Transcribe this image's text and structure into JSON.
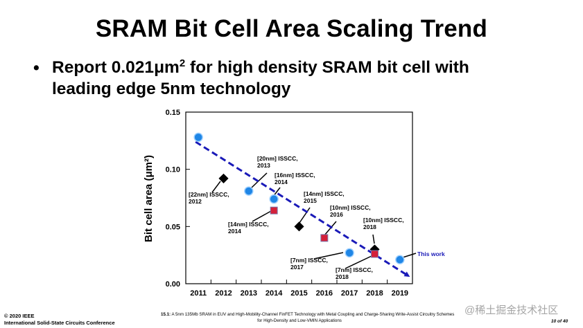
{
  "slide": {
    "title": "SRAM Bit Cell Area Scaling Trend",
    "bullet_symbol": "•",
    "bullet_line1_pre": "Report 0.021",
    "bullet_unit_mu": "μm",
    "bullet_unit_exp": "2",
    "bullet_line1_post": " for high density SRAM bit cell with",
    "bullet_line2": "leading edge 5nm technology"
  },
  "chart_data": {
    "type": "scatter",
    "title": "",
    "xlabel": "",
    "ylabel": "Bit cell area (μm²)",
    "categories": [
      "2011",
      "2012",
      "2013",
      "2014",
      "2015",
      "2016",
      "2017",
      "2018",
      "2019"
    ],
    "ylim": [
      0,
      0.15
    ],
    "yticks": [
      "0.00",
      "0.05",
      "0.10",
      "0.15"
    ],
    "yticks_values": [
      0,
      0.05,
      0.1,
      0.15
    ],
    "series": [
      {
        "name": "blue-circle",
        "marker": "circle",
        "color": "#1f86e6",
        "points": [
          {
            "x": "2011",
            "y": 0.128
          },
          {
            "x": "2013",
            "y": 0.081
          },
          {
            "x": "2014",
            "y": 0.074
          },
          {
            "x": "2017",
            "y": 0.027
          },
          {
            "x": "2019",
            "y": 0.021
          }
        ]
      },
      {
        "name": "black-diamond",
        "marker": "diamond",
        "color": "#000000",
        "points": [
          {
            "x": "2012",
            "y": 0.092
          },
          {
            "x": "2015",
            "y": 0.05
          },
          {
            "x": "2018",
            "y": 0.03
          }
        ]
      },
      {
        "name": "red-square",
        "marker": "square",
        "color": "#d4203a",
        "points": [
          {
            "x": "2014",
            "y": 0.064
          },
          {
            "x": "2016",
            "y": 0.04
          },
          {
            "x": "2018",
            "y": 0.026
          }
        ]
      }
    ],
    "trend_line": {
      "from": {
        "x": "2011",
        "y": 0.124
      },
      "to": {
        "x": "2019",
        "y": 0.01
      },
      "color": "#1a1ab8",
      "style": "dashed"
    },
    "annotations": [
      {
        "lines": [
          "[22nm] ISSCC,",
          "2012"
        ]
      },
      {
        "lines": [
          "[20nm] ISSCC,",
          "2013"
        ]
      },
      {
        "lines": [
          "[16nm] ISSCC,",
          "2014"
        ]
      },
      {
        "lines": [
          "[14nm] ISSCC,",
          "2014"
        ]
      },
      {
        "lines": [
          "[14nm] ISSCC,",
          "2015"
        ]
      },
      {
        "lines": [
          "[10nm] ISSCC,",
          "2016"
        ]
      },
      {
        "lines": [
          "[10nm] ISSCC,",
          "2018"
        ]
      },
      {
        "lines": [
          "[7nm] ISSCC,",
          "2017"
        ]
      },
      {
        "lines": [
          "[7nm] ISSCC,",
          "2018"
        ]
      },
      {
        "lines": [
          "This work"
        ]
      }
    ]
  },
  "footer": {
    "copyright": "© 2020 IEEE",
    "conference": "International Solid-State Circuits Conference",
    "ref_number": "15.1:",
    "paper_line1": " A 5nm 135Mb SRAM in EUV and High-Mobility-Channel FinFET Technology with Metal Coupling and Charge-Sharing Write-Assist Circuitry Schemes",
    "paper_line2": "for High-Density and Low-VMIN Applications",
    "page": "10 of 40"
  },
  "watermark": "@稀土掘金技术社区"
}
